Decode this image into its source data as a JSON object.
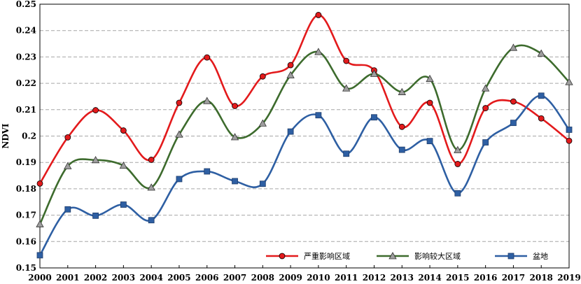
{
  "chart_data": {
    "type": "line",
    "title": "",
    "xlabel": "",
    "ylabel": "NDVI",
    "x": [
      "2000",
      "2001",
      "2002",
      "2003",
      "2004",
      "2005",
      "2006",
      "2007",
      "2008",
      "2009",
      "2010",
      "2011",
      "2012",
      "2013",
      "2014",
      "2015",
      "2016",
      "2017",
      "2018",
      "2019"
    ],
    "ylim": [
      0.15,
      0.25
    ],
    "yticks": [
      "0.15",
      "0.16",
      "0.17",
      "0.18",
      "0.19",
      "0.2",
      "0.21",
      "0.22",
      "0.23",
      "0.24",
      "0.25"
    ],
    "grid": "horizontal dashed",
    "legend_position": "bottom-right",
    "series": [
      {
        "name": "严重影响区域",
        "color": "#e31a1c",
        "marker": "circle",
        "values": [
          0.182,
          0.1995,
          0.2098,
          0.2021,
          0.191,
          0.2126,
          0.2298,
          0.2114,
          0.2226,
          0.2269,
          0.2459,
          0.2285,
          0.2249,
          0.2035,
          0.2126,
          0.1894,
          0.2106,
          0.2131,
          0.2067,
          0.1982
        ]
      },
      {
        "name": "影响较大区域",
        "color": "#3d6b2d",
        "marker": "triangle",
        "values": [
          0.1666,
          0.1886,
          0.1909,
          0.1888,
          0.1805,
          0.2006,
          0.2133,
          0.1996,
          0.2048,
          0.2231,
          0.2319,
          0.2181,
          0.2236,
          0.2167,
          0.2217,
          0.1947,
          0.2181,
          0.2335,
          0.2313,
          0.2205
        ]
      },
      {
        "name": "盆地",
        "color": "#2e5fa3",
        "marker": "square",
        "values": [
          0.1548,
          0.1722,
          0.1698,
          0.174,
          0.1681,
          0.1837,
          0.1866,
          0.1829,
          0.1819,
          0.2017,
          0.2079,
          0.1933,
          0.2071,
          0.1948,
          0.1981,
          0.1783,
          0.1976,
          0.205,
          0.2153,
          0.2024
        ]
      }
    ]
  }
}
